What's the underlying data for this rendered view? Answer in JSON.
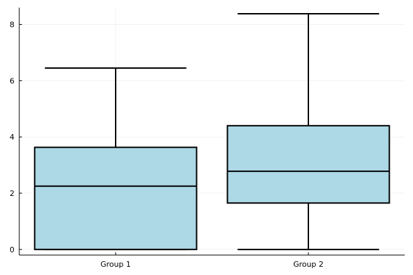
{
  "chart_data": {
    "type": "box",
    "title": "",
    "xlabel": "",
    "ylabel": "",
    "categories": [
      "Group 1",
      "Group 2"
    ],
    "ylim": [
      -0.2,
      8.6
    ],
    "yticks": [
      0,
      2,
      4,
      6,
      8
    ],
    "yticks_labels": [
      "0",
      "2",
      "4",
      "6",
      "8"
    ],
    "grid": true,
    "legend": "none",
    "box_fill": "#add8e6",
    "stroke_color": "#000000",
    "boxes": [
      {
        "category": "Group 1",
        "min": 0.0,
        "q1": 0.0,
        "median": 2.25,
        "q3": 3.63,
        "max": 6.45
      },
      {
        "category": "Group 2",
        "min": 0.0,
        "q1": 1.65,
        "median": 2.78,
        "q3": 4.4,
        "max": 8.38
      }
    ]
  }
}
